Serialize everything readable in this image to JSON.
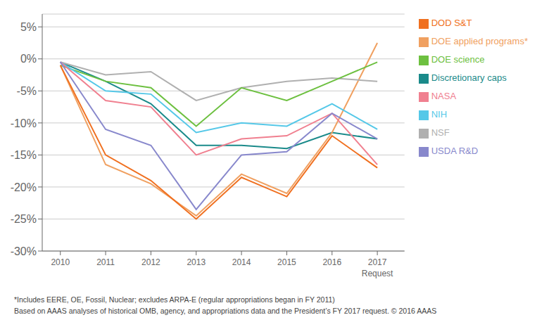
{
  "chart_data": {
    "type": "line",
    "x": [
      2010,
      2011,
      2012,
      2013,
      2014,
      2015,
      2016,
      2017
    ],
    "series": [
      {
        "name": "Discretionary caps",
        "color": "#1a8a8a",
        "values": [
          -0.5,
          -3.5,
          -7.0,
          -13.5,
          -13.5,
          -14.0,
          -11.5,
          -12.5
        ]
      },
      {
        "name": "DOE applied programs*",
        "color": "#f0a060",
        "values": [
          -1.0,
          -16.5,
          -19.5,
          -24.5,
          -18.0,
          -21.0,
          -11.5,
          2.5
        ]
      },
      {
        "name": "NSF",
        "color": "#b0b0b0",
        "values": [
          -0.5,
          -2.5,
          -2.0,
          -6.5,
          -4.5,
          -3.5,
          -3.0,
          -3.5
        ]
      },
      {
        "name": "DOE science",
        "color": "#6dc040",
        "values": [
          -1.0,
          -3.5,
          -4.5,
          -10.5,
          -4.5,
          -6.5,
          -3.5,
          -0.5
        ]
      },
      {
        "name": "NIH",
        "color": "#55c8e8",
        "values": [
          -0.5,
          -5.0,
          -5.5,
          -11.5,
          -10.0,
          -10.5,
          -7.0,
          -11.0
        ]
      },
      {
        "name": "NASA",
        "color": "#f08090",
        "values": [
          -0.5,
          -6.5,
          -7.5,
          -15.0,
          -12.5,
          -12.0,
          -8.5,
          -16.5
        ]
      },
      {
        "name": "USDA R&D",
        "color": "#8888cc",
        "values": [
          -0.5,
          -11.0,
          -13.5,
          -23.5,
          -15.0,
          -14.5,
          -8.5,
          -12.5
        ]
      },
      {
        "name": "DOD S&T",
        "color": "#f07020",
        "values": [
          -1.0,
          -15.0,
          -19.0,
          -25.0,
          -18.5,
          -21.5,
          -12.0,
          -17.0
        ]
      }
    ],
    "xlim": [
      2009.6,
      2017.6
    ],
    "xticks": [
      2010,
      2011,
      2012,
      2013,
      2014,
      2015,
      2016,
      2017
    ],
    "ylim": [
      -30,
      7
    ],
    "yticks": [
      {
        "value": 5,
        "label": "5%"
      },
      {
        "value": 0,
        "label": "0%"
      },
      {
        "value": -5,
        "label": "-5%"
      },
      {
        "value": -10,
        "label": "-10%"
      },
      {
        "value": -15,
        "label": "-15%"
      },
      {
        "value": -20,
        "label": "-20%"
      },
      {
        "value": -25,
        "label": "-25%"
      },
      {
        "value": -30,
        "label": "-30%"
      }
    ],
    "grid": "y",
    "legend": "right",
    "annotations": [
      {
        "text": "Request",
        "x": 2017
      }
    ],
    "footnotes": [
      "*Includes EERE, OE, Fossil, Nuclear; excludes ARPA-E (regular appropriations began in FY 2011)",
      "Based on AAAS analyses of historical OMB, agency, and appropriations data and the President’s FY 2017 request. © 2016 AAAS"
    ]
  }
}
